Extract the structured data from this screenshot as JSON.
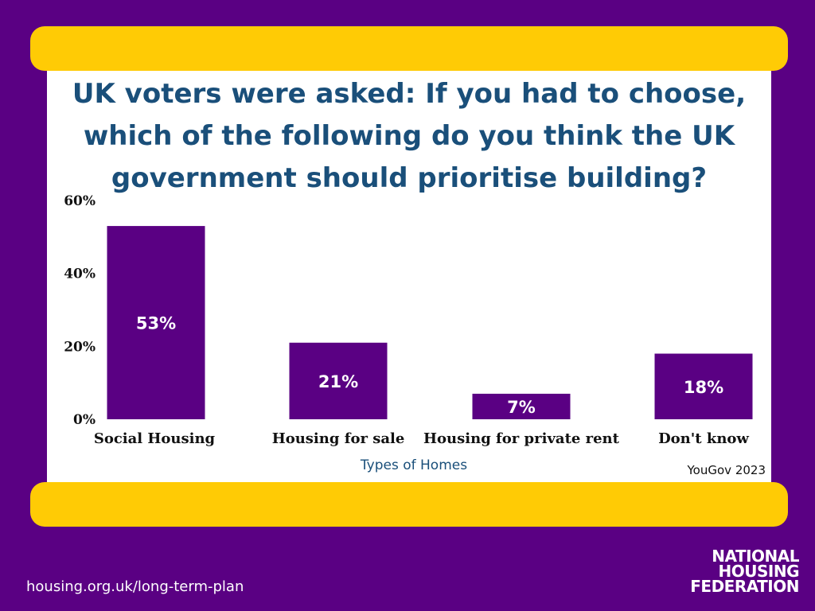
{
  "chart_data": {
    "type": "bar",
    "title": "UK voters were asked: If you had to choose, which of the following do you think the UK government should prioritise building?",
    "categories": [
      "Social Housing",
      "Housing for sale",
      "Housing for private rent",
      "Don't know"
    ],
    "values": [
      53,
      21,
      7,
      18
    ],
    "data_labels": [
      "53%",
      "21%",
      "7%",
      "18%"
    ],
    "xlabel": "Types of Homes",
    "ylabel": "",
    "ylim": [
      0,
      60
    ],
    "yticks": [
      {
        "value": 0,
        "label": "0%"
      },
      {
        "value": 20,
        "label": "20%"
      },
      {
        "value": 40,
        "label": "40%"
      },
      {
        "value": 60,
        "label": "60%"
      }
    ],
    "grid": false,
    "legend": "none",
    "bar_color": "#5a0083",
    "source": "YouGov 2023"
  },
  "footer": {
    "url": "housing.org.uk/long-term-plan",
    "logo_lines": [
      "NATIONAL",
      "HOUSING",
      "FEDERATION"
    ]
  },
  "colors": {
    "background": "#5a0083",
    "band": "#ffcb05",
    "title": "#1a4f7a"
  }
}
